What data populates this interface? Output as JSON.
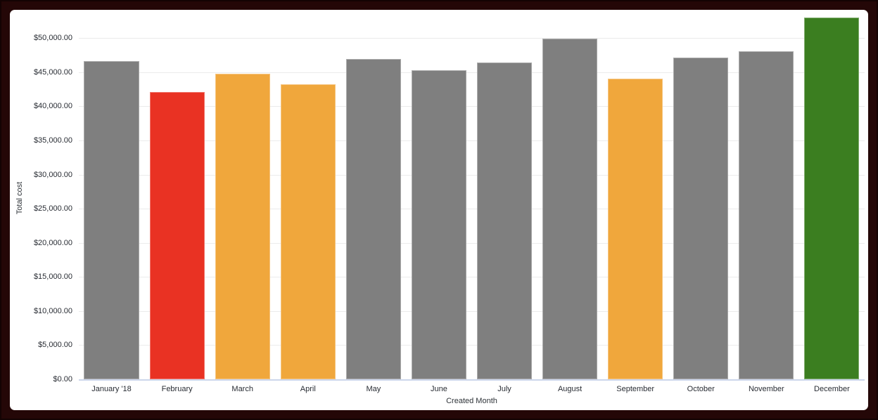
{
  "frame": {
    "outer_background": "#240707",
    "outer_edge": "#140303",
    "panel_background": "#ffffff"
  },
  "chart_data": {
    "type": "bar",
    "title": "",
    "xlabel": "Created Month",
    "ylabel": "Total cost",
    "categories": [
      "January '18",
      "February",
      "March",
      "April",
      "May",
      "June",
      "July",
      "August",
      "September",
      "October",
      "November",
      "December"
    ],
    "values": [
      46600,
      42100,
      44800,
      43200,
      46900,
      45300,
      46400,
      49900,
      44100,
      47100,
      48100,
      53000
    ],
    "bar_colors": [
      "#7f7f7f",
      "#e93223",
      "#f0a73c",
      "#f0a73c",
      "#7f7f7f",
      "#7f7f7f",
      "#7f7f7f",
      "#7f7f7f",
      "#f0a73c",
      "#7f7f7f",
      "#7f7f7f",
      "#3b7e20"
    ],
    "palette": {
      "neutral_gray": "#7f7f7f",
      "alert_red": "#e93223",
      "warning_orange": "#f0a73c",
      "good_green": "#3b7e20"
    },
    "ylim": [
      0,
      53000
    ],
    "yticks": [
      0,
      5000,
      10000,
      15000,
      20000,
      25000,
      30000,
      35000,
      40000,
      45000,
      50000
    ],
    "ytick_labels": [
      "$0.00",
      "$5,000.00",
      "$10,000.00",
      "$15,000.00",
      "$20,000.00",
      "$25,000.00",
      "$30,000.00",
      "$35,000.00",
      "$40,000.00",
      "$45,000.00",
      "$50,000.00"
    ],
    "grid": "horizontal",
    "gridline_color": "#ebebeb",
    "baseline_color": "#ccd6eb",
    "legend": "none"
  }
}
